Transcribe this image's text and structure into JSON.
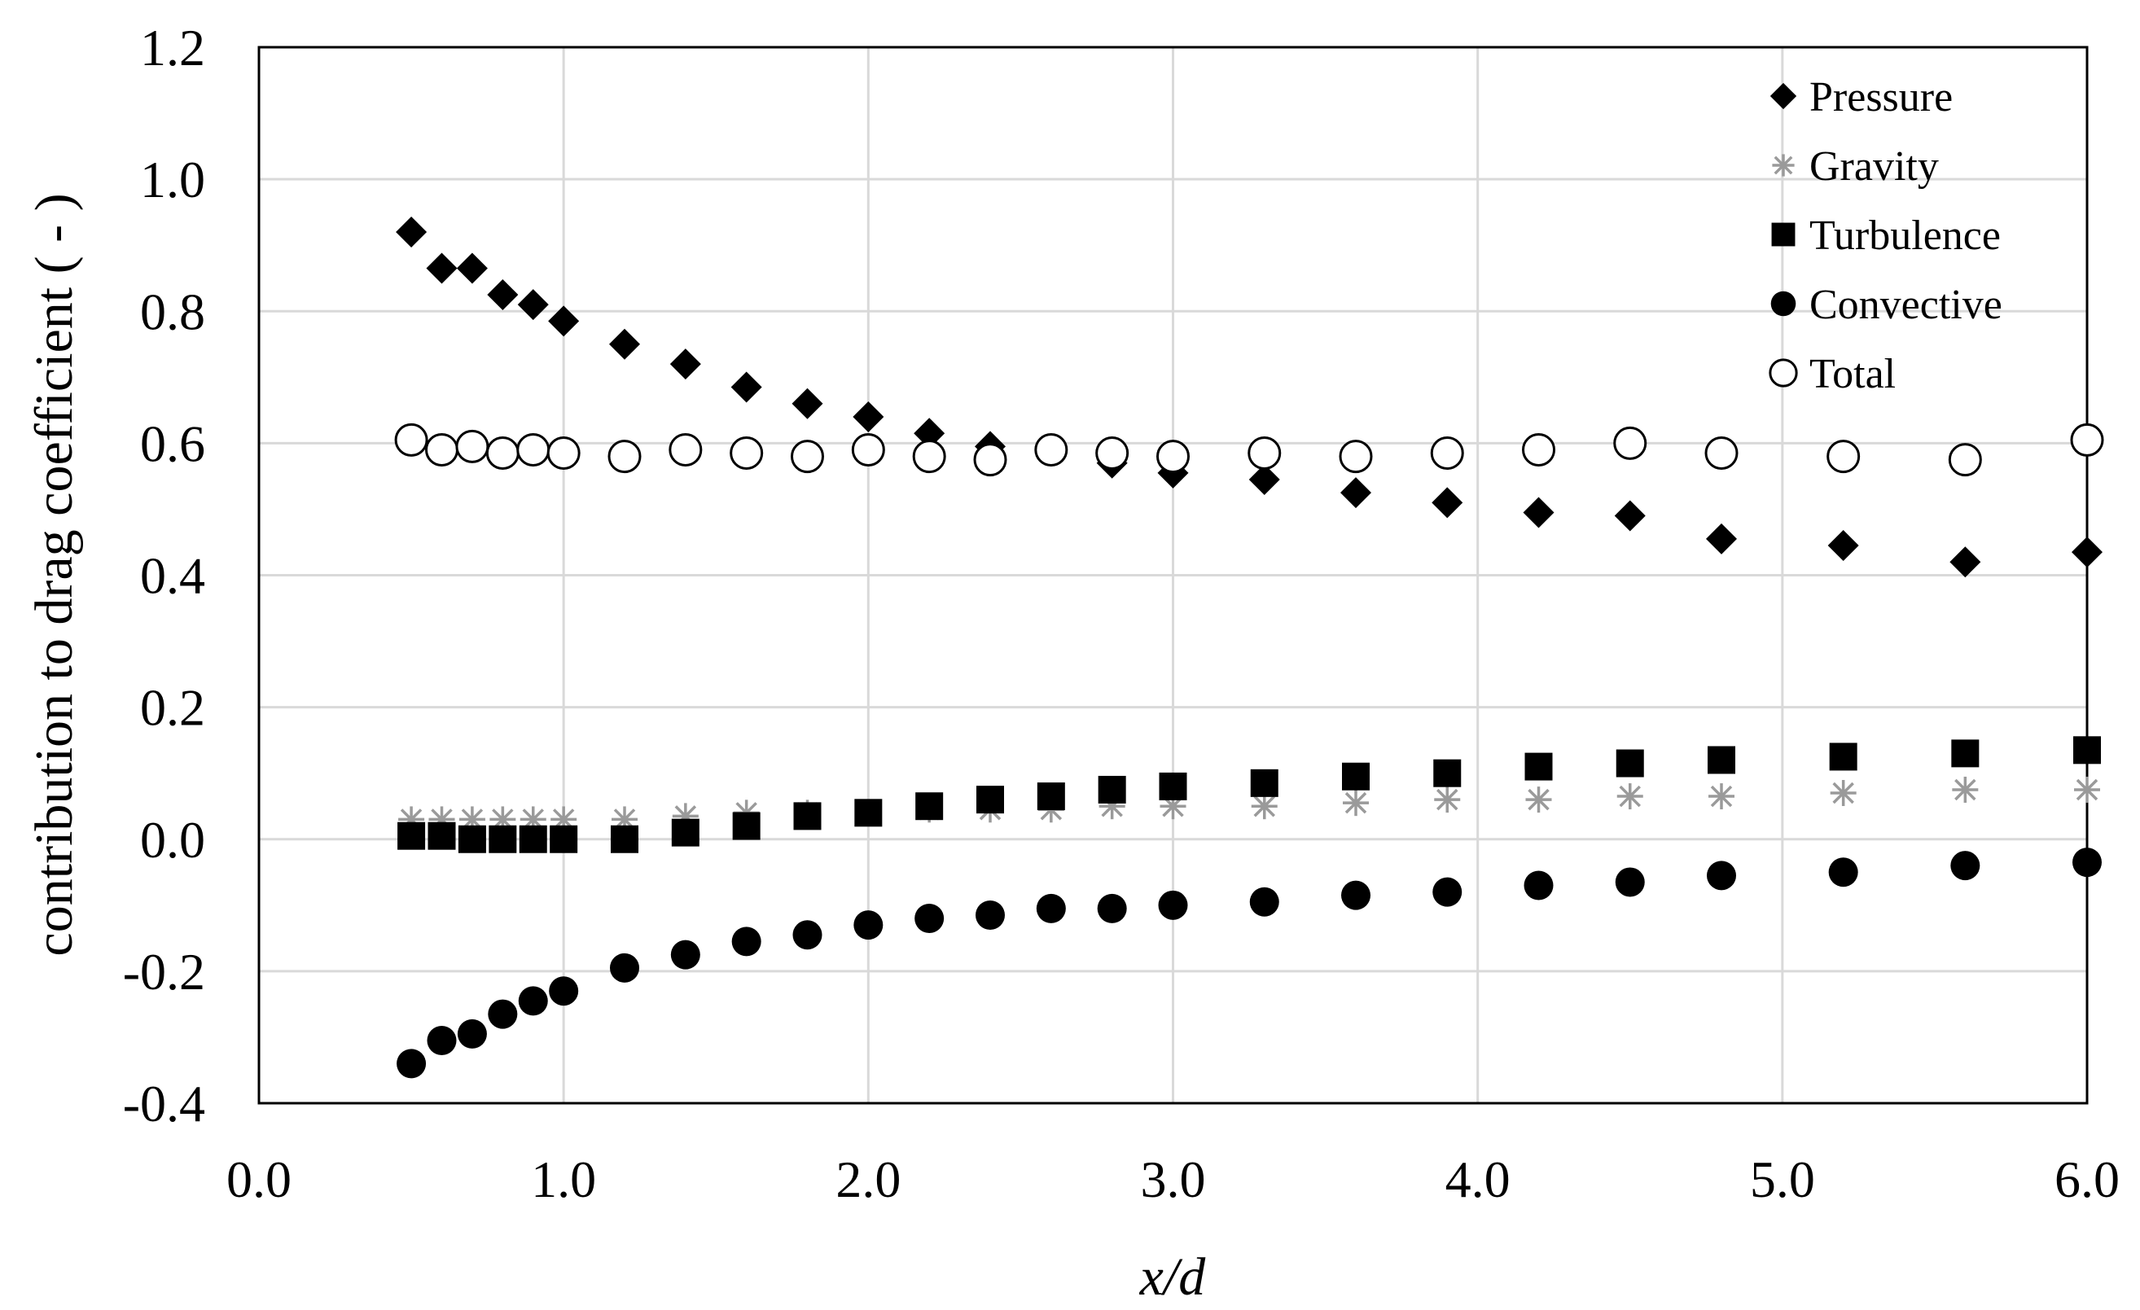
{
  "chart_data": {
    "type": "scatter",
    "xlabel": "x/d",
    "ylabel": "contribution to drag coefficient ( - )",
    "xlim": [
      0.0,
      6.0
    ],
    "ylim": [
      -0.4,
      1.2
    ],
    "x_ticks": [
      "0.0",
      "1.0",
      "2.0",
      "3.0",
      "4.0",
      "5.0",
      "6.0"
    ],
    "y_ticks": [
      "-0.4",
      "-0.2",
      "0.0",
      "0.2",
      "0.4",
      "0.6",
      "0.8",
      "1.0",
      "1.2"
    ],
    "grid": true,
    "legend_position": "top-right",
    "x": [
      0.5,
      0.6,
      0.7,
      0.8,
      0.9,
      1.0,
      1.2,
      1.4,
      1.6,
      1.8,
      2.0,
      2.2,
      2.4,
      2.6,
      2.8,
      3.0,
      3.3,
      3.6,
      3.9,
      4.2,
      4.5,
      4.8,
      5.2,
      5.6,
      6.0
    ],
    "series": [
      {
        "name": "Pressure",
        "marker": "diamond",
        "color": "#000000",
        "values": [
          0.92,
          0.865,
          0.865,
          0.825,
          0.81,
          0.785,
          0.75,
          0.72,
          0.685,
          0.66,
          0.64,
          0.615,
          0.595,
          0.59,
          0.57,
          0.555,
          0.545,
          0.525,
          0.51,
          0.495,
          0.49,
          0.455,
          0.445,
          0.42,
          0.435
        ]
      },
      {
        "name": "Gravity",
        "marker": "asterisk",
        "color": "#9a9a9a",
        "values": [
          0.03,
          0.03,
          0.03,
          0.03,
          0.03,
          0.03,
          0.03,
          0.035,
          0.04,
          0.04,
          0.04,
          0.045,
          0.045,
          0.045,
          0.05,
          0.05,
          0.05,
          0.055,
          0.06,
          0.06,
          0.065,
          0.065,
          0.07,
          0.075,
          0.075
        ]
      },
      {
        "name": "Turbulence",
        "marker": "square",
        "color": "#000000",
        "values": [
          0.005,
          0.005,
          0.0,
          0.0,
          0.0,
          0.0,
          0.0,
          0.01,
          0.02,
          0.035,
          0.04,
          0.05,
          0.06,
          0.065,
          0.075,
          0.08,
          0.085,
          0.095,
          0.1,
          0.11,
          0.115,
          0.12,
          0.125,
          0.13,
          0.135
        ]
      },
      {
        "name": "Convective",
        "marker": "circle",
        "color": "#000000",
        "values": [
          -0.34,
          -0.305,
          -0.295,
          -0.265,
          -0.245,
          -0.23,
          -0.195,
          -0.175,
          -0.155,
          -0.145,
          -0.13,
          -0.12,
          -0.115,
          -0.105,
          -0.105,
          -0.1,
          -0.095,
          -0.085,
          -0.08,
          -0.07,
          -0.065,
          -0.055,
          -0.05,
          -0.04,
          -0.035
        ]
      },
      {
        "name": "Total",
        "marker": "open-circle",
        "color": "#000000",
        "values": [
          0.605,
          0.59,
          0.595,
          0.585,
          0.59,
          0.585,
          0.58,
          0.59,
          0.585,
          0.58,
          0.59,
          0.58,
          0.575,
          0.59,
          0.585,
          0.58,
          0.585,
          0.58,
          0.585,
          0.59,
          0.6,
          0.585,
          0.58,
          0.575,
          0.605
        ]
      }
    ]
  }
}
